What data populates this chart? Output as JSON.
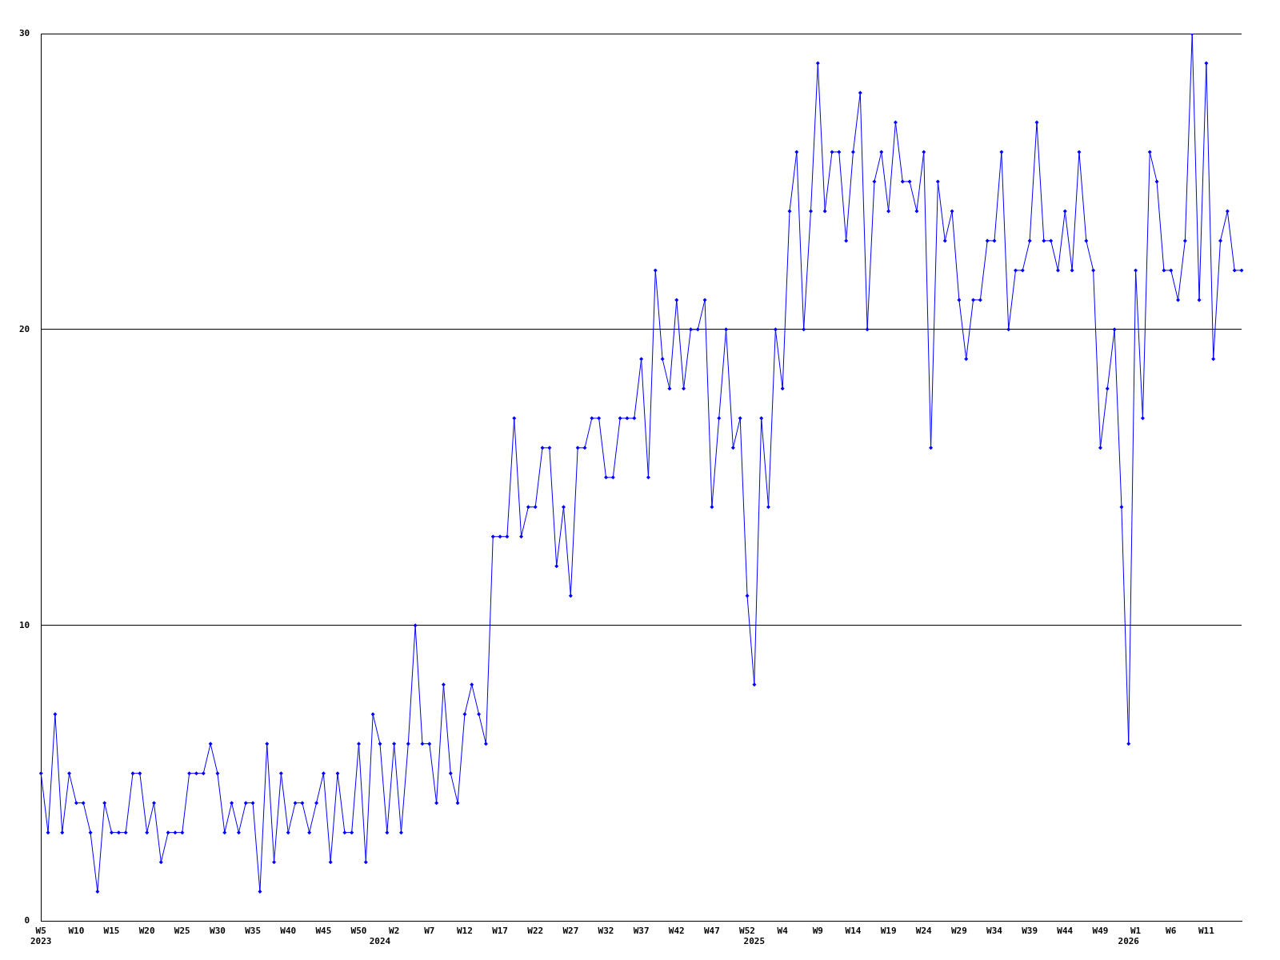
{
  "chart_data": {
    "type": "line",
    "categories": [
      "W5\n2023",
      null,
      null,
      null,
      null,
      "W10",
      null,
      null,
      null,
      null,
      "W15",
      null,
      null,
      null,
      null,
      "W20",
      null,
      null,
      null,
      null,
      "W25",
      null,
      null,
      null,
      null,
      "W30",
      null,
      null,
      null,
      null,
      "W35",
      null,
      null,
      null,
      null,
      "W40",
      null,
      null,
      null,
      null,
      "W45",
      null,
      null,
      null,
      null,
      "W50",
      null,
      null,
      "\n2024",
      null,
      "W2",
      null,
      null,
      null,
      null,
      "W7",
      null,
      null,
      null,
      null,
      "W12",
      null,
      null,
      null,
      null,
      "W17",
      null,
      null,
      null,
      null,
      "W22",
      null,
      null,
      null,
      null,
      "W27",
      null,
      null,
      null,
      null,
      "W32",
      null,
      null,
      null,
      null,
      "W37",
      null,
      null,
      null,
      null,
      "W42",
      null,
      null,
      null,
      null,
      "W47",
      null,
      null,
      null,
      null,
      "W52",
      "\n2025",
      null,
      null,
      null,
      "W4",
      null,
      null,
      null,
      null,
      "W9",
      null,
      null,
      null,
      null,
      "W14",
      null,
      null,
      null,
      null,
      "W19",
      null,
      null,
      null,
      null,
      "W24",
      null,
      null,
      null,
      null,
      "W29",
      null,
      null,
      null,
      null,
      "W34",
      null,
      null,
      null,
      null,
      "W39",
      null,
      null,
      null,
      null,
      "W44",
      null,
      null,
      null,
      null,
      "W49",
      null,
      null,
      null,
      "\n2026",
      "W1",
      null,
      null,
      null,
      null,
      "W6",
      null,
      null,
      null,
      null,
      "W11",
      null,
      null,
      null,
      null,
      null
    ],
    "values": [
      5,
      3,
      7,
      3,
      5,
      4,
      4,
      3,
      1,
      4,
      3,
      3,
      3,
      5,
      5,
      3,
      4,
      2,
      3,
      3,
      3,
      5,
      5,
      5,
      6,
      5,
      3,
      4,
      3,
      4,
      4,
      1,
      6,
      2,
      5,
      3,
      4,
      4,
      3,
      4,
      5,
      2,
      5,
      3,
      3,
      6,
      2,
      7,
      6,
      3,
      6,
      3,
      6,
      10,
      6,
      6,
      4,
      8,
      5,
      4,
      7,
      8,
      7,
      6,
      13,
      13,
      13,
      17,
      13,
      14,
      14,
      16,
      16,
      12,
      14,
      11,
      16,
      16,
      17,
      17,
      15,
      15,
      17,
      17,
      17,
      19,
      15,
      22,
      19,
      18,
      21,
      18,
      20,
      20,
      21,
      14,
      17,
      20,
      16,
      17,
      11,
      8,
      17,
      14,
      20,
      18,
      24,
      26,
      20,
      24,
      29,
      24,
      26,
      26,
      23,
      26,
      28,
      20,
      25,
      26,
      24,
      27,
      25,
      25,
      24,
      26,
      16,
      25,
      23,
      24,
      21,
      19,
      21,
      21,
      23,
      23,
      26,
      20,
      22,
      22,
      23,
      27,
      23,
      23,
      22,
      24,
      22,
      26,
      23,
      22,
      16,
      18,
      20,
      14,
      6,
      22,
      17,
      26,
      25,
      22,
      22,
      21,
      23,
      30,
      21,
      29,
      19,
      23,
      24,
      22,
      22
    ],
    "color": "#0000ff",
    "ylim": [
      0,
      30
    ],
    "yticks": [
      0,
      10,
      20,
      30
    ],
    "grid": "y",
    "marker": "diamond",
    "line_style": "solid"
  }
}
